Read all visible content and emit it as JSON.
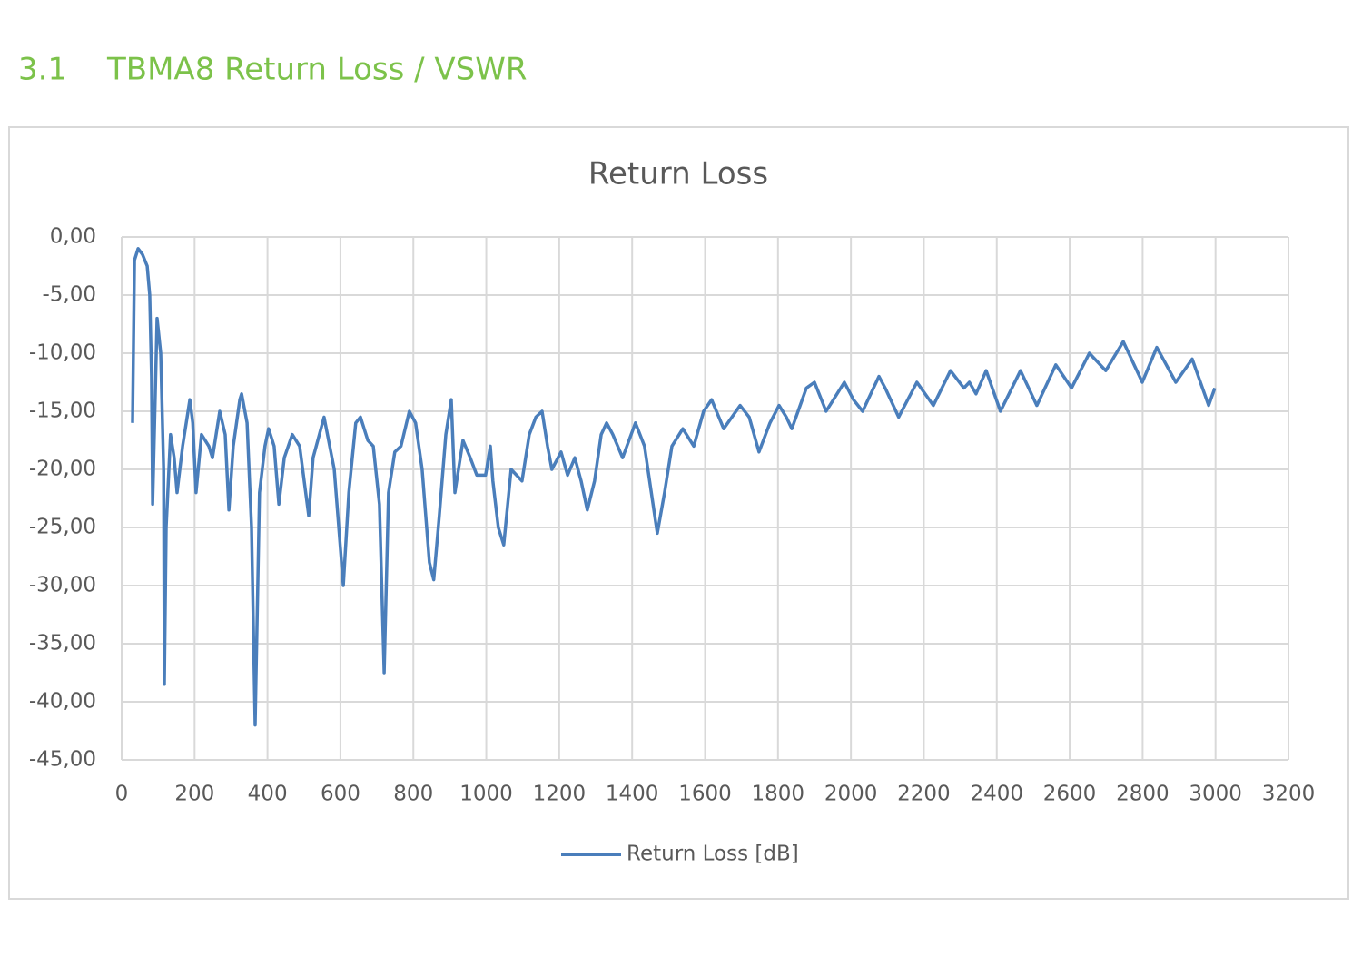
{
  "heading": {
    "number": "3.1",
    "title": "TBMA8 Return Loss / VSWR"
  },
  "chart_data": {
    "type": "line",
    "title": "Return Loss",
    "x": [
      30,
      35,
      45,
      57,
      70,
      77,
      82,
      85,
      97,
      107,
      115,
      117,
      122,
      134,
      144,
      152,
      167,
      187,
      195,
      204,
      219,
      239,
      249,
      269,
      284,
      294,
      306,
      324,
      329,
      344,
      356,
      366,
      378,
      393,
      403,
      418,
      431,
      446,
      468,
      488,
      513,
      525,
      555,
      583,
      608,
      623,
      642,
      655,
      675,
      690,
      707,
      720,
      732,
      749,
      766,
      789,
      806,
      824,
      844,
      856,
      871,
      889,
      904,
      914,
      936,
      956,
      974,
      998,
      1011,
      1018,
      1033,
      1048,
      1068,
      1098,
      1118,
      1136,
      1153,
      1168,
      1180,
      1205,
      1223,
      1243,
      1260,
      1277,
      1297,
      1315,
      1330,
      1347,
      1374,
      1409,
      1434,
      1469,
      1489,
      1509,
      1539,
      1569,
      1596,
      1618,
      1651,
      1696,
      1721,
      1748,
      1778,
      1803,
      1823,
      1838,
      1878,
      1900,
      1932,
      1952,
      1982,
      2007,
      2032,
      2077,
      2094,
      2131,
      2181,
      2226,
      2273,
      2310,
      2325,
      2343,
      2371,
      2410,
      2465,
      2510,
      2562,
      2605,
      2654,
      2699,
      2747,
      2799,
      2839,
      2891,
      2936,
      2981,
      2998
    ],
    "series": [
      {
        "name": "Return Loss [dB]",
        "color": "#4a7ebb",
        "values": [
          -16,
          -2,
          -1,
          -1.5,
          -2.5,
          -5,
          -12,
          -23,
          -7,
          -10,
          -20,
          -38.5,
          -25,
          -17,
          -19,
          -22,
          -18,
          -14,
          -16,
          -22,
          -17,
          -18,
          -19,
          -15,
          -17,
          -23.5,
          -18,
          -14,
          -13.5,
          -16,
          -25,
          -42,
          -22,
          -18,
          -16.5,
          -18,
          -23,
          -19,
          -17,
          -18,
          -24,
          -19,
          -15.5,
          -20,
          -30,
          -22,
          -16,
          -15.5,
          -17.5,
          -18,
          -23,
          -37.5,
          -22,
          -18.5,
          -18,
          -15,
          -16,
          -20,
          -28,
          -29.5,
          -24,
          -17,
          -14,
          -22,
          -17.5,
          -19,
          -20.5,
          -20.5,
          -18,
          -21,
          -25,
          -26.5,
          -20,
          -21,
          -17,
          -15.5,
          -15,
          -18,
          -20,
          -18.5,
          -20.5,
          -19,
          -21,
          -23.5,
          -21,
          -17,
          -16,
          -17,
          -19,
          -16,
          -18,
          -25.5,
          -22,
          -18,
          -16.5,
          -18,
          -15,
          -14,
          -16.5,
          -14.5,
          -15.5,
          -18.5,
          -16,
          -14.5,
          -15.5,
          -16.5,
          -13,
          -12.5,
          -15,
          -14,
          -12.5,
          -14,
          -15,
          -12,
          -13,
          -15.5,
          -12.5,
          -14.5,
          -11.5,
          -13,
          -12.5,
          -13.5,
          -11.5,
          -15,
          -11.5,
          -14.5,
          -11,
          -13,
          -10,
          -11.5,
          -9,
          -12.5,
          -9.5,
          -12.5,
          -10.5,
          -14.5,
          -13
        ]
      }
    ],
    "xlim": [
      0,
      3200
    ],
    "xticks": [
      0,
      200,
      400,
      600,
      800,
      1000,
      1200,
      1400,
      1600,
      1800,
      2000,
      2200,
      2400,
      2600,
      2800,
      3000,
      3200
    ],
    "ylim": [
      -45,
      0
    ],
    "yticks": [
      {
        "value": 0,
        "label": "0,00"
      },
      {
        "value": -5,
        "label": "-5,00"
      },
      {
        "value": -10,
        "label": "-10,00"
      },
      {
        "value": -15,
        "label": "-15,00"
      },
      {
        "value": -20,
        "label": "-20,00"
      },
      {
        "value": -25,
        "label": "-25,00"
      },
      {
        "value": -30,
        "label": "-30,00"
      },
      {
        "value": -35,
        "label": "-35,00"
      },
      {
        "value": -40,
        "label": "-40,00"
      },
      {
        "value": -45,
        "label": "-45,00"
      }
    ],
    "grid": true,
    "legend": "bottom"
  }
}
